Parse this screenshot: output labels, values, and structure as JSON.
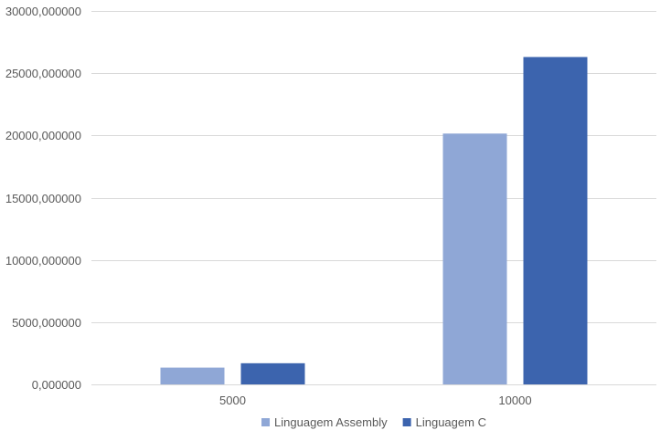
{
  "chart_data": {
    "type": "bar",
    "categories": [
      "5000",
      "10000"
    ],
    "series": [
      {
        "name": "Linguagem Assembly",
        "values": [
          1350,
          20150
        ],
        "color": "#8FA7D6"
      },
      {
        "name": "Linguagem C",
        "values": [
          1700,
          26300
        ],
        "color": "#3C64AE"
      }
    ],
    "ylim": [
      0,
      30000
    ],
    "y_ticks": [
      0,
      5000,
      10000,
      15000,
      20000,
      25000,
      30000
    ],
    "y_tick_labels": [
      "0,000000",
      "5000,000000",
      "10000,000000",
      "15000,000000",
      "20000,000000",
      "25000,000000",
      "30000,000000"
    ],
    "grid": true,
    "legend_position": "bottom",
    "gridline_color": "#D9D9D9",
    "text_color": "#595959"
  }
}
